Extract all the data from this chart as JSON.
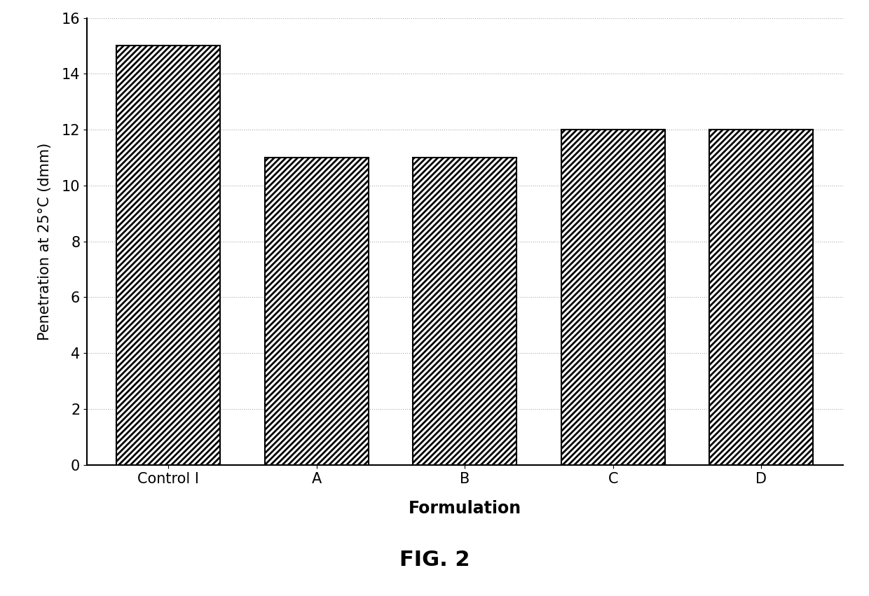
{
  "categories": [
    "Control I",
    "A",
    "B",
    "C",
    "D"
  ],
  "values": [
    15,
    11,
    11,
    12,
    12
  ],
  "ylabel": "Penetration at 25°C (dmm)",
  "xlabel": "Formulation",
  "title": "FIG. 2",
  "ylim": [
    0,
    16
  ],
  "yticks": [
    0,
    2,
    4,
    6,
    8,
    10,
    12,
    14,
    16
  ],
  "bar_color": "#ffffff",
  "bar_edgecolor": "#000000",
  "hatch": "////",
  "background_color": "#ffffff",
  "grid_color": "#aaaaaa",
  "grid_linestyle": ":",
  "bar_width": 0.7
}
